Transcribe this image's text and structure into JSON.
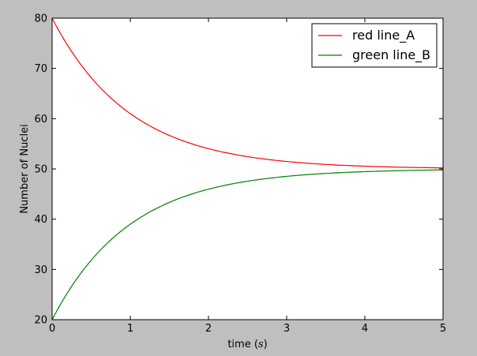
{
  "chart_data": {
    "type": "line",
    "xlabel": "time (",
    "xlabel_unit": "s",
    "xlabel_close": ")",
    "ylabel": "Number of Nuclei",
    "xlim": [
      0,
      5
    ],
    "ylim": [
      20,
      80
    ],
    "xticks": [
      0,
      1,
      2,
      3,
      4,
      5
    ],
    "yticks": [
      20,
      30,
      40,
      50,
      60,
      70,
      80
    ],
    "grid": false,
    "legend_position": "top-right",
    "x": [
      0,
      0.25,
      0.5,
      0.75,
      1,
      1.25,
      1.5,
      1.75,
      2,
      2.25,
      2.5,
      2.75,
      3,
      3.25,
      3.5,
      3.75,
      4,
      4.25,
      4.5,
      4.75,
      5
    ],
    "series": [
      {
        "name": "red line_A",
        "color": "#ff0000",
        "values": [
          80.0,
          73.4,
          68.2,
          64.2,
          61.0,
          58.6,
          56.7,
          55.2,
          54.1,
          53.2,
          52.5,
          51.9,
          51.5,
          51.2,
          50.9,
          50.7,
          50.6,
          50.4,
          50.4,
          50.3,
          50.2
        ]
      },
      {
        "name": "green line_B",
        "color": "#008000",
        "values": [
          20.0,
          26.6,
          31.8,
          35.8,
          39.0,
          41.4,
          43.3,
          44.8,
          45.9,
          46.8,
          47.5,
          48.1,
          48.5,
          48.8,
          49.1,
          49.3,
          49.4,
          49.6,
          49.6,
          49.7,
          49.8
        ]
      }
    ]
  }
}
